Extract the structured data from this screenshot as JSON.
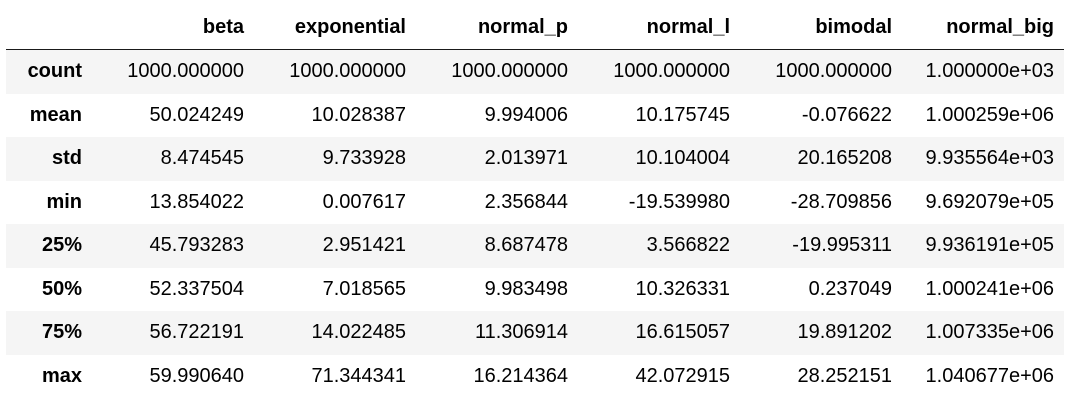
{
  "table": {
    "columns": [
      "beta",
      "exponential",
      "normal_p",
      "normal_l",
      "bimodal",
      "normal_big"
    ],
    "rows": [
      {
        "label": "count",
        "values": [
          "1000.000000",
          "1000.000000",
          "1000.000000",
          "1000.000000",
          "1000.000000",
          "1.000000e+03"
        ]
      },
      {
        "label": "mean",
        "values": [
          "50.024249",
          "10.028387",
          "9.994006",
          "10.175745",
          "-0.076622",
          "1.000259e+06"
        ]
      },
      {
        "label": "std",
        "values": [
          "8.474545",
          "9.733928",
          "2.013971",
          "10.104004",
          "20.165208",
          "9.935564e+03"
        ]
      },
      {
        "label": "min",
        "values": [
          "13.854022",
          "0.007617",
          "2.356844",
          "-19.539980",
          "-28.709856",
          "9.692079e+05"
        ]
      },
      {
        "label": "25%",
        "values": [
          "45.793283",
          "2.951421",
          "8.687478",
          "3.566822",
          "-19.995311",
          "9.936191e+05"
        ]
      },
      {
        "label": "50%",
        "values": [
          "52.337504",
          "7.018565",
          "9.983498",
          "10.326331",
          "0.237049",
          "1.000241e+06"
        ]
      },
      {
        "label": "75%",
        "values": [
          "56.722191",
          "14.022485",
          "11.306914",
          "16.615057",
          "19.891202",
          "1.007335e+06"
        ]
      },
      {
        "label": "max",
        "values": [
          "59.990640",
          "71.344341",
          "16.214364",
          "42.072915",
          "28.252151",
          "1.040677e+06"
        ]
      }
    ]
  }
}
